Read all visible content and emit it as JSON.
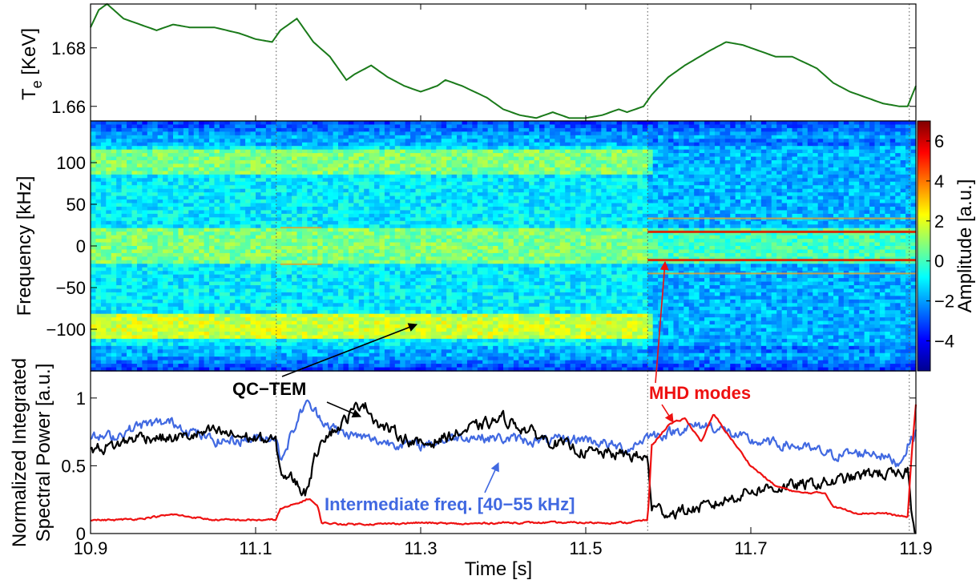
{
  "colors": {
    "te_line": "#1a7a1a",
    "qc_tem": "#000000",
    "intermediate": "#4169e1",
    "mhd": "#ee1111",
    "frame": "#000000"
  },
  "chart_data": [
    {
      "type": "line",
      "panel": "top",
      "ylabel_main": "T",
      "ylabel_sub": "e",
      "ylabel_rest": " [KeV]",
      "ylim": [
        1.655,
        1.695
      ],
      "yticks": [
        1.66,
        1.68
      ],
      "ytick_labels": [
        "1.66",
        "1.68"
      ],
      "xlim": [
        10.9,
        11.9
      ],
      "series": [
        {
          "x": [
            10.9,
            10.91,
            10.92,
            10.94,
            10.96,
            10.98,
            11.0,
            11.02,
            11.05,
            11.08,
            11.1,
            11.12,
            11.13,
            11.15,
            11.16,
            11.17,
            11.19,
            11.21,
            11.22,
            11.24,
            11.26,
            11.28,
            11.3,
            11.32,
            11.33,
            11.35,
            11.38,
            11.4,
            11.42,
            11.44,
            11.46,
            11.48,
            11.5,
            11.52,
            11.54,
            11.55,
            11.57,
            11.58,
            11.6,
            11.62,
            11.65,
            11.67,
            11.69,
            11.71,
            11.73,
            11.75,
            11.78,
            11.8,
            11.82,
            11.84,
            11.86,
            11.88,
            11.89,
            11.9
          ],
          "y": [
            1.687,
            1.693,
            1.695,
            1.69,
            1.688,
            1.686,
            1.688,
            1.687,
            1.687,
            1.685,
            1.683,
            1.682,
            1.686,
            1.69,
            1.686,
            1.682,
            1.677,
            1.669,
            1.671,
            1.674,
            1.67,
            1.667,
            1.665,
            1.667,
            1.669,
            1.667,
            1.663,
            1.659,
            1.657,
            1.656,
            1.658,
            1.656,
            1.656,
            1.657,
            1.659,
            1.658,
            1.66,
            1.664,
            1.67,
            1.674,
            1.679,
            1.682,
            1.681,
            1.679,
            1.677,
            1.677,
            1.673,
            1.668,
            1.665,
            1.663,
            1.661,
            1.66,
            1.66,
            1.667
          ]
        }
      ]
    },
    {
      "type": "heatmap",
      "panel": "middle",
      "ylabel": "Frequency [kHz]",
      "ylim": [
        -150,
        150
      ],
      "yticks": [
        100,
        50,
        0,
        -50,
        -100
      ],
      "ytick_labels": [
        "100",
        "50",
        "0",
        "−50",
        "−100"
      ],
      "xlim": [
        10.9,
        11.9
      ],
      "colorbar": {
        "label": "Amplitude [a.u.]",
        "range": [
          -5.5,
          7
        ],
        "ticks": [
          6,
          4,
          2,
          0,
          -2,
          -4
        ],
        "tick_labels": [
          "6",
          "4",
          "2",
          "0",
          "−2",
          "−4"
        ],
        "colormap": "jet"
      },
      "bands": [
        {
          "name": "QC-TEM",
          "freq": [
            -110,
            -80
          ],
          "time": [
            10.9,
            11.58
          ],
          "level": "high"
        },
        {
          "name": "low-freq",
          "freq": [
            -20,
            20
          ],
          "time": [
            10.9,
            11.9
          ],
          "level": "medium"
        },
        {
          "name": "upper band",
          "freq": [
            85,
            115
          ],
          "time": [
            10.9,
            11.58
          ],
          "level": "medium"
        }
      ],
      "lines": [
        {
          "name": "MHD mode",
          "freq": 17,
          "time": [
            11.575,
            11.9
          ]
        },
        {
          "name": "MHD mode",
          "freq": -17,
          "time": [
            11.575,
            11.9
          ]
        },
        {
          "name": "weak mode",
          "freq": 33,
          "time": [
            11.575,
            11.9
          ]
        },
        {
          "name": "weak mode",
          "freq": -33,
          "time": [
            11.575,
            11.9
          ]
        },
        {
          "name": "short mode",
          "freq": 22,
          "time": [
            11.13,
            11.18
          ]
        },
        {
          "name": "short mode",
          "freq": -22,
          "time": [
            11.13,
            11.18
          ]
        }
      ]
    },
    {
      "type": "line",
      "panel": "bottom",
      "ylabel_line1": "Normalized Integrated",
      "ylabel_line2": "Spectral Power [a.u.]",
      "xlabel": "Time [s]",
      "ylim": [
        0,
        1.2
      ],
      "yticks": [
        0,
        0.5,
        1
      ],
      "ytick_labels": [
        "0",
        "0.5",
        "1"
      ],
      "xlim": [
        10.9,
        11.9
      ],
      "xticks": [
        10.9,
        11.1,
        11.3,
        11.5,
        11.7,
        11.9
      ],
      "xtick_labels": [
        "10.9",
        "11.1",
        "11.3",
        "11.5",
        "11.7",
        "11.9"
      ],
      "vlines": [
        11.125,
        11.575,
        11.892
      ],
      "series": [
        {
          "x": [
            10.9,
            10.93,
            10.96,
            11.0,
            11.05,
            11.1,
            11.124,
            11.13,
            11.15,
            11.165,
            11.175,
            11.18,
            11.2,
            11.25,
            11.3,
            11.35,
            11.4,
            11.45,
            11.5,
            11.55,
            11.575,
            11.58,
            11.6,
            11.62,
            11.64,
            11.655,
            11.67,
            11.7,
            11.73,
            11.76,
            11.79,
            11.8,
            11.83,
            11.86,
            11.88,
            11.89,
            11.895,
            11.9
          ],
          "y": [
            0.1,
            0.1,
            0.11,
            0.14,
            0.1,
            0.1,
            0.1,
            0.18,
            0.22,
            0.26,
            0.2,
            0.08,
            0.07,
            0.07,
            0.08,
            0.07,
            0.08,
            0.08,
            0.08,
            0.08,
            0.1,
            0.65,
            0.8,
            0.85,
            0.68,
            0.88,
            0.75,
            0.5,
            0.35,
            0.3,
            0.3,
            0.2,
            0.15,
            0.15,
            0.13,
            0.12,
            0.6,
            0.95
          ]
        },
        {
          "x": [
            10.9,
            10.93,
            10.96,
            11.0,
            11.05,
            11.1,
            11.124,
            11.13,
            11.15,
            11.16,
            11.18,
            11.2,
            11.25,
            11.3,
            11.35,
            11.4,
            11.45,
            11.5,
            11.55,
            11.575,
            11.6,
            11.62,
            11.65,
            11.7,
            11.75,
            11.8,
            11.85,
            11.88,
            11.89,
            11.9
          ],
          "y": [
            0.7,
            0.72,
            0.8,
            0.82,
            0.68,
            0.7,
            0.72,
            0.55,
            0.82,
            0.97,
            0.85,
            0.75,
            0.68,
            0.65,
            0.72,
            0.7,
            0.68,
            0.7,
            0.62,
            0.72,
            0.74,
            0.78,
            0.8,
            0.68,
            0.65,
            0.58,
            0.6,
            0.52,
            0.65,
            0.75
          ]
        },
        {
          "x": [
            10.9,
            10.93,
            10.96,
            11.0,
            11.05,
            11.1,
            11.124,
            11.13,
            11.145,
            11.16,
            11.18,
            11.2,
            11.23,
            11.25,
            11.3,
            11.35,
            11.4,
            11.45,
            11.5,
            11.55,
            11.575,
            11.58,
            11.6,
            11.65,
            11.7,
            11.75,
            11.8,
            11.85,
            11.88,
            11.89,
            11.895,
            11.9
          ],
          "y": [
            0.62,
            0.65,
            0.72,
            0.7,
            0.75,
            0.7,
            0.68,
            0.45,
            0.4,
            0.3,
            0.72,
            0.78,
            0.98,
            0.8,
            0.65,
            0.75,
            0.85,
            0.7,
            0.6,
            0.58,
            0.55,
            0.2,
            0.15,
            0.2,
            0.32,
            0.35,
            0.38,
            0.45,
            0.42,
            0.48,
            0.15,
            0.02
          ]
        }
      ],
      "annotations": [
        {
          "text": "QC−TEM",
          "color": "#000000"
        },
        {
          "text": "MHD modes",
          "color": "#ee1111"
        },
        {
          "text": "Intermediate freq. [40−55 kHz]",
          "color": "#4169e1"
        }
      ]
    }
  ]
}
